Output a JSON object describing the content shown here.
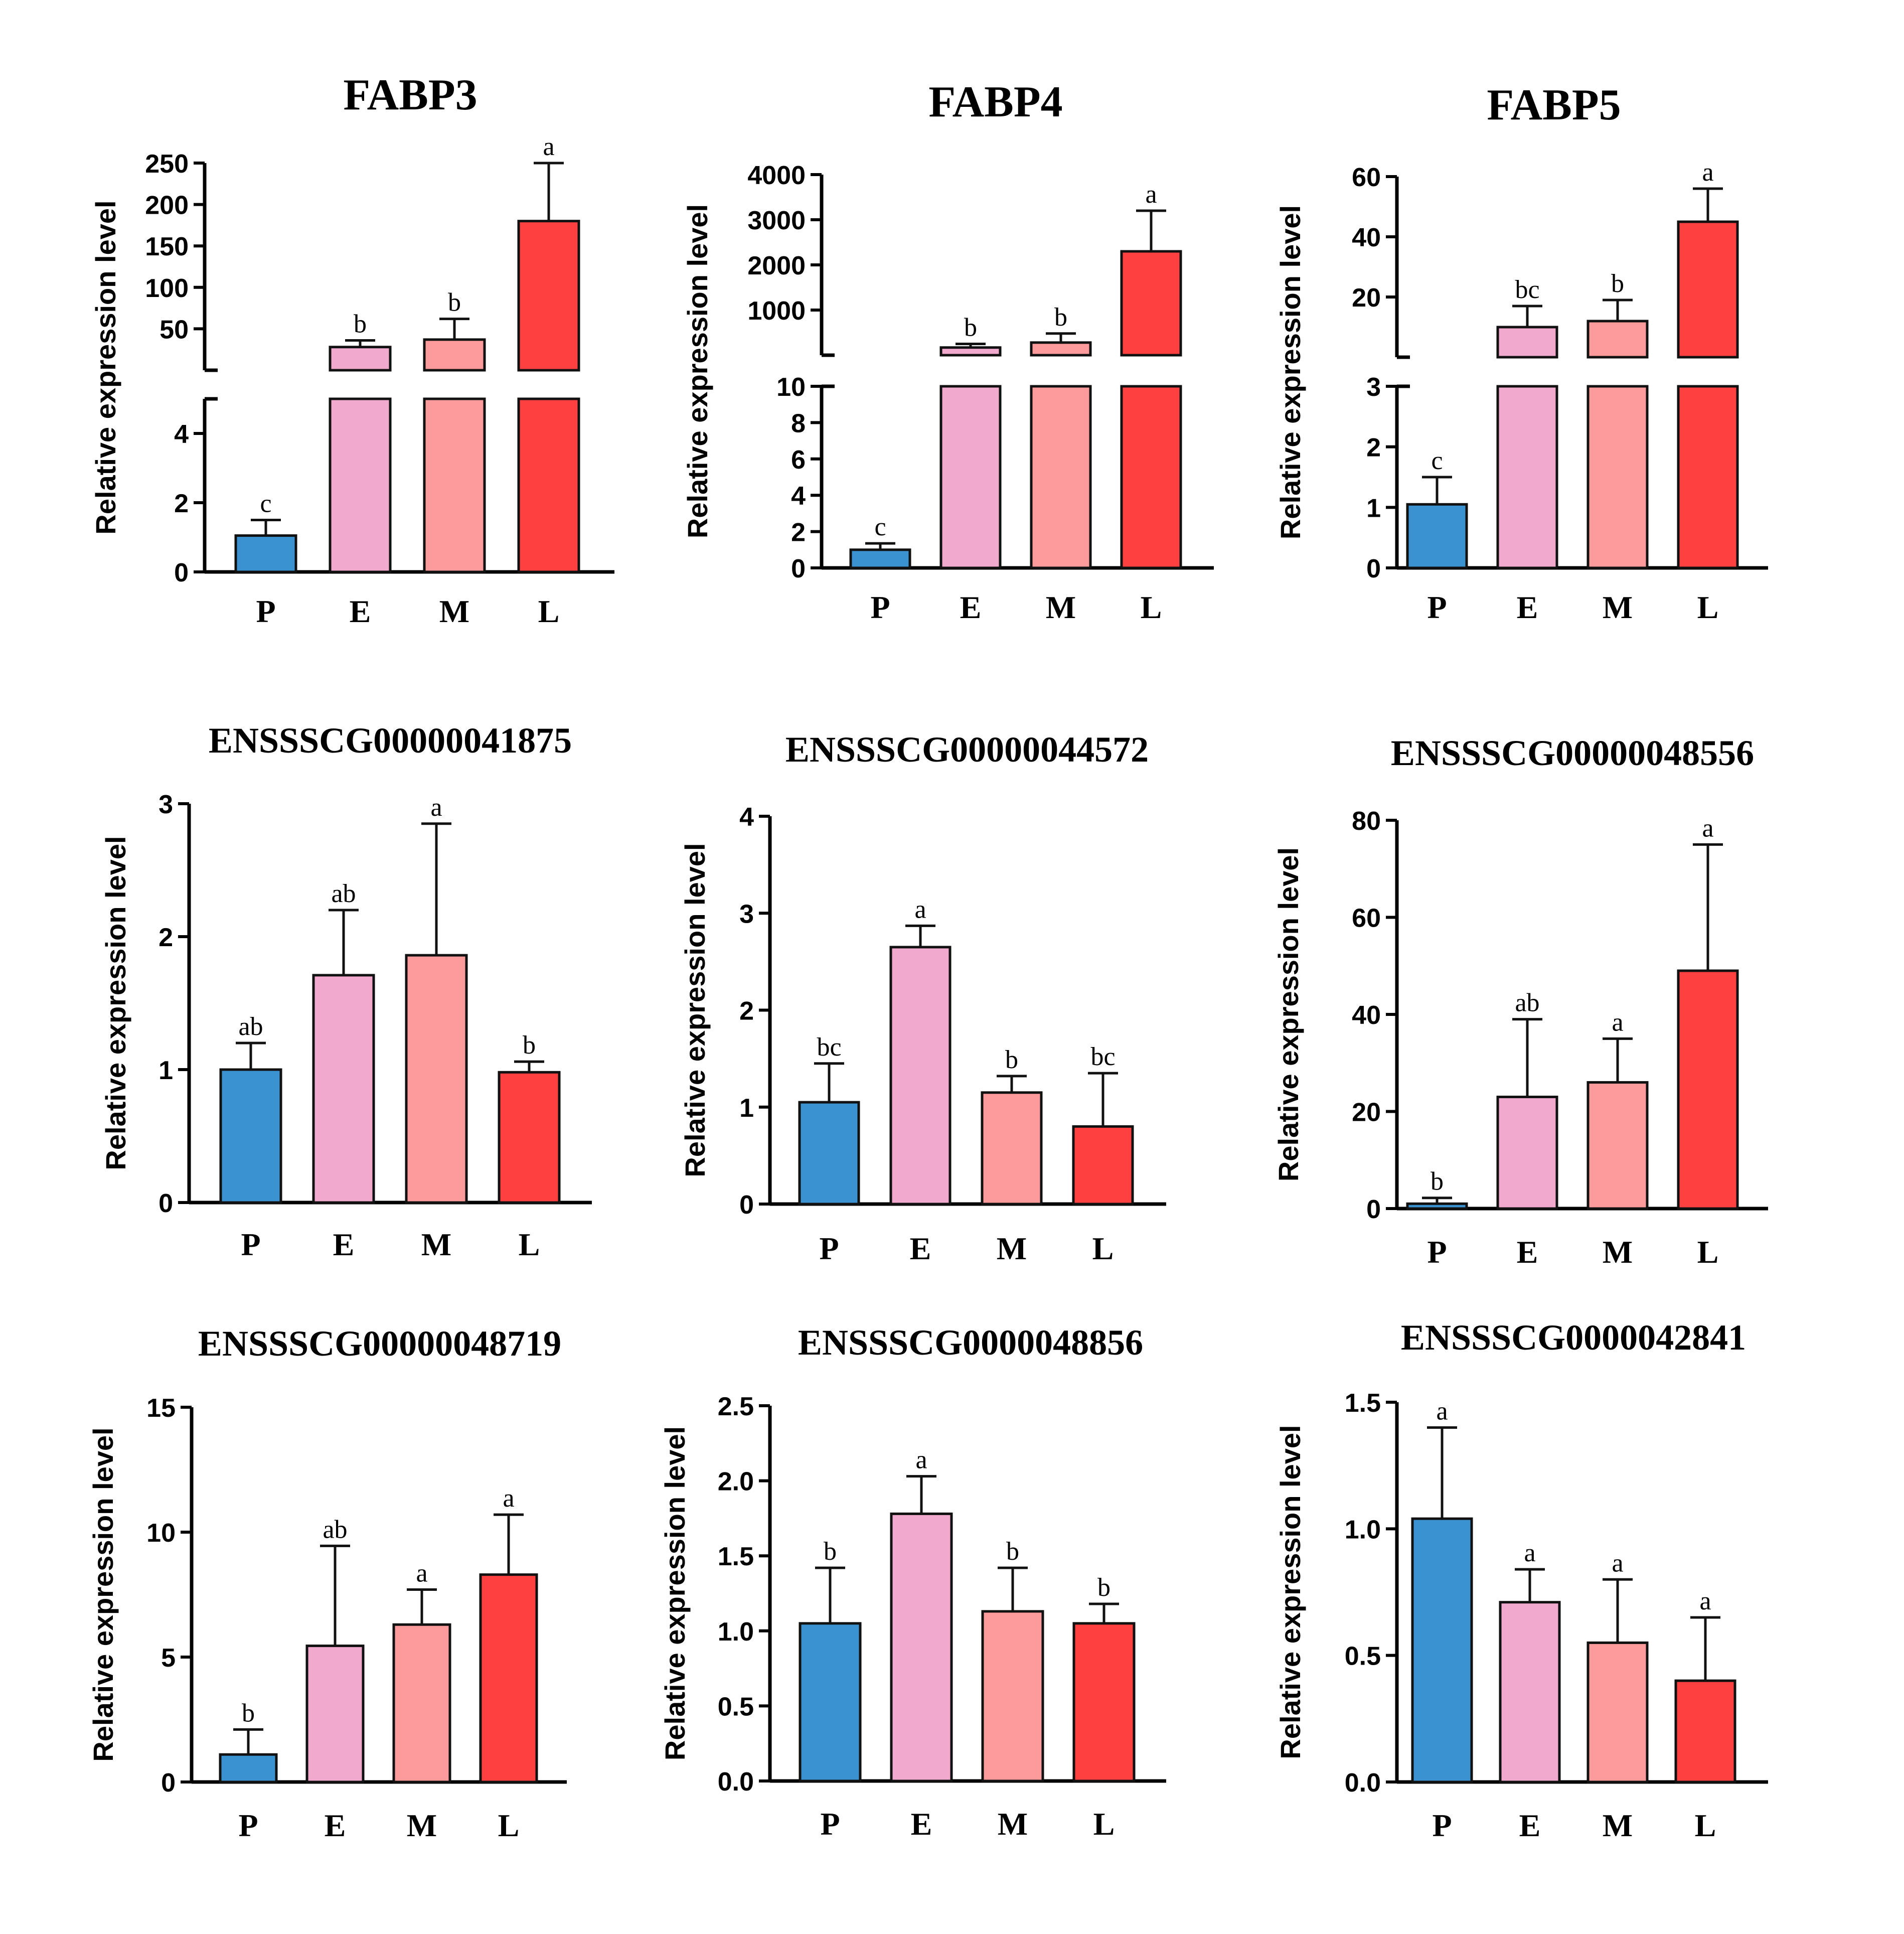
{
  "colors": {
    "P": "#3a93d0",
    "E": "#f2a9ce",
    "M": "#fd9a9b",
    "L": "#ff4040"
  },
  "chart_data": [
    {
      "type": "bar",
      "title": "FABP3",
      "ylabel": "Relative expression level",
      "categories": [
        "P",
        "E",
        "M",
        "L"
      ],
      "values": [
        1.05,
        28,
        37,
        180
      ],
      "errors": [
        0.45,
        8,
        25,
        70
      ],
      "sig": [
        "c",
        "b",
        "b",
        "a"
      ],
      "broken_axis": true,
      "lower": {
        "ylim": [
          0,
          5
        ],
        "ticks": [
          0,
          2,
          4
        ],
        "tick_labels": [
          "0",
          "2",
          "4"
        ]
      },
      "upper": {
        "ylim": [
          0,
          250
        ],
        "ticks": [
          50,
          100,
          150,
          200,
          250
        ],
        "tick_labels": [
          "50",
          "100",
          "150",
          "200",
          "250"
        ]
      }
    },
    {
      "type": "bar",
      "title": "FABP4",
      "ylabel": "Relative expression level",
      "categories": [
        "P",
        "E",
        "M",
        "L"
      ],
      "values": [
        1.0,
        170,
        280,
        2300
      ],
      "errors": [
        0.35,
        80,
        200,
        900
      ],
      "sig": [
        "c",
        "b",
        "b",
        "a"
      ],
      "broken_axis": true,
      "lower": {
        "ylim": [
          0,
          10
        ],
        "ticks": [
          0,
          2,
          4,
          6,
          8,
          10
        ],
        "tick_labels": [
          "0",
          "2",
          "4",
          "6",
          "8",
          "10"
        ]
      },
      "upper": {
        "ylim": [
          0,
          4000
        ],
        "ticks": [
          1000,
          2000,
          3000,
          4000
        ],
        "tick_labels": [
          "1000",
          "2000",
          "3000",
          "4000"
        ]
      }
    },
    {
      "type": "bar",
      "title": "FABP5",
      "ylabel": "Relative expression level",
      "categories": [
        "P",
        "E",
        "M",
        "L"
      ],
      "values": [
        1.05,
        10,
        12,
        45
      ],
      "errors": [
        0.45,
        7,
        7,
        11
      ],
      "sig": [
        "c",
        "bc",
        "b",
        "a"
      ],
      "broken_axis": true,
      "lower": {
        "ylim": [
          0,
          3
        ],
        "ticks": [
          0,
          1,
          2,
          3
        ],
        "tick_labels": [
          "0",
          "1",
          "2",
          "3"
        ]
      },
      "upper": {
        "ylim": [
          0,
          60
        ],
        "ticks": [
          20,
          40,
          60
        ],
        "tick_labels": [
          "20",
          "40",
          "60"
        ]
      }
    },
    {
      "type": "bar",
      "title": "ENSSSCG00000041875",
      "ylabel": "Relative expression level",
      "categories": [
        "P",
        "E",
        "M",
        "L"
      ],
      "values": [
        1.0,
        1.71,
        1.86,
        0.98
      ],
      "errors": [
        0.2,
        0.49,
        0.99,
        0.08
      ],
      "sig": [
        "ab",
        "ab",
        "a",
        "b"
      ],
      "ylim": [
        0,
        3
      ],
      "ticks": [
        0,
        1,
        2,
        3
      ],
      "tick_labels": [
        "0",
        "1",
        "2",
        "3"
      ]
    },
    {
      "type": "bar",
      "title": "ENSSSCG00000044572",
      "ylabel": "Relative expression level",
      "categories": [
        "P",
        "E",
        "M",
        "L"
      ],
      "values": [
        1.05,
        2.65,
        1.15,
        0.8
      ],
      "errors": [
        0.4,
        0.22,
        0.17,
        0.55
      ],
      "sig": [
        "bc",
        "a",
        "b",
        "bc"
      ],
      "ylim": [
        0,
        4
      ],
      "ticks": [
        0,
        1,
        2,
        3,
        4
      ],
      "tick_labels": [
        "0",
        "1",
        "2",
        "3",
        "4"
      ]
    },
    {
      "type": "bar",
      "title": "ENSSSCG00000048556",
      "ylabel": "Relative expression level",
      "categories": [
        "P",
        "E",
        "M",
        "L"
      ],
      "values": [
        1.0,
        23,
        26,
        49
      ],
      "errors": [
        1.2,
        16,
        9,
        26
      ],
      "sig": [
        "b",
        "ab",
        "a",
        "a"
      ],
      "ylim": [
        0,
        80
      ],
      "ticks": [
        0,
        20,
        40,
        60,
        80
      ],
      "tick_labels": [
        "0",
        "20",
        "40",
        "60",
        "80"
      ]
    },
    {
      "type": "bar",
      "title": "ENSSSCG00000048719",
      "ylabel": "Relative expression level",
      "categories": [
        "P",
        "E",
        "M",
        "L"
      ],
      "values": [
        1.1,
        5.45,
        6.3,
        8.3
      ],
      "errors": [
        1.0,
        4.0,
        1.4,
        2.4
      ],
      "sig": [
        "b",
        "ab",
        "a",
        "a"
      ],
      "ylim": [
        0,
        15
      ],
      "ticks": [
        0,
        5,
        10,
        15
      ],
      "tick_labels": [
        "0",
        "5",
        "10",
        "15"
      ]
    },
    {
      "type": "bar",
      "title": "ENSSSCG0000048856",
      "ylabel": "Relative expression level",
      "categories": [
        "P",
        "E",
        "M",
        "L"
      ],
      "values": [
        1.05,
        1.78,
        1.13,
        1.05
      ],
      "errors": [
        0.37,
        0.25,
        0.29,
        0.13
      ],
      "sig": [
        "b",
        "a",
        "b",
        "b"
      ],
      "ylim": [
        0,
        2.5
      ],
      "ticks": [
        0,
        0.5,
        1.0,
        1.5,
        2.0,
        2.5
      ],
      "tick_labels": [
        "0.0",
        "0.5",
        "1.0",
        "1.5",
        "2.0",
        "2.5"
      ]
    },
    {
      "type": "bar",
      "title": "ENSSSCG0000042841",
      "ylabel": "Relative expression level",
      "categories": [
        "P",
        "E",
        "M",
        "L"
      ],
      "values": [
        1.04,
        0.71,
        0.55,
        0.4
      ],
      "errors": [
        0.36,
        0.13,
        0.25,
        0.25
      ],
      "sig": [
        "a",
        "a",
        "a",
        "a"
      ],
      "ylim": [
        0,
        1.5
      ],
      "ticks": [
        0,
        0.5,
        1.0,
        1.5
      ],
      "tick_labels": [
        "0.0",
        "0.5",
        "1.0",
        "1.5"
      ]
    }
  ]
}
